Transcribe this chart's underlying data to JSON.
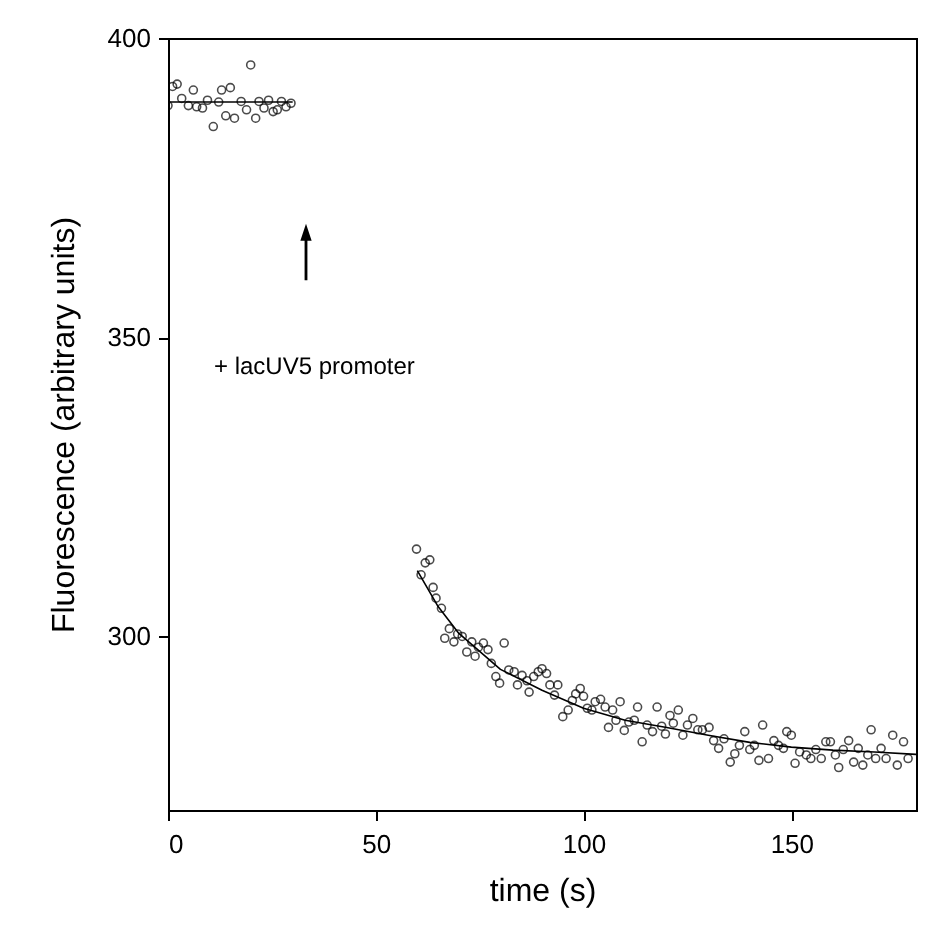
{
  "chart_data": {
    "type": "scatter",
    "xlabel": "time (s)",
    "ylabel": "Fluorescence (arbitrary units)",
    "xlim": [
      0,
      180
    ],
    "ylim": [
      271,
      400
    ],
    "xticks": [
      0,
      50,
      100,
      150
    ],
    "yticks": [
      300,
      350,
      400
    ],
    "grid": false,
    "annotations": [
      "+ lacUV5 promoter"
    ],
    "series": [
      {
        "marker": "circle",
        "color": "#000000",
        "x": [
          0,
          1.1,
          2.2,
          3.3,
          4.9,
          6.1,
          6.9,
          8.3,
          9.5,
          10.9,
          12.2,
          12.9,
          13.9,
          15,
          16,
          17.6,
          18.9,
          19.9,
          21.1,
          21.9,
          23.1,
          24.2,
          25.3,
          26.3,
          27.3,
          28.4,
          29.6,
          59.8,
          60.9,
          61.9,
          63,
          63.8,
          64.5,
          65.8,
          66.6,
          67.7,
          68.8,
          69.7,
          70.8,
          71.9,
          73.1,
          73.9,
          74.7,
          75.9,
          77,
          77.8,
          78.9,
          79.8,
          80.9,
          82,
          83.3,
          84.1,
          85.2,
          86.4,
          86.9,
          88,
          89.1,
          90,
          91.1,
          91.9,
          93,
          93.8,
          95,
          96.3,
          97.3,
          98.1,
          99.2,
          100,
          100.9,
          102,
          102.8,
          104.1,
          105.2,
          106,
          107,
          107.8,
          108.8,
          109.8,
          110.9,
          112.2,
          113,
          114.1,
          115.3,
          116.6,
          117.7,
          118.8,
          119.7,
          120.8,
          121.6,
          122.8,
          123.9,
          125,
          126.3,
          127.5,
          128.6,
          130.2,
          131.3,
          132.5,
          133.8,
          135.3,
          136.4,
          137.5,
          138.8,
          140,
          141.1,
          142.2,
          143.1,
          144.5,
          145.8,
          146.9,
          148.1,
          148.9,
          150,
          150.9,
          152,
          153.6,
          154.7,
          155.9,
          157.2,
          158.3,
          159.4,
          160.6,
          161.4,
          162.5,
          163.8,
          165,
          166.1,
          167.2,
          168.4,
          169.2,
          170.3,
          171.6,
          172.8,
          174.4,
          175.5,
          177,
          178.1
        ],
        "values": [
          388.7,
          391.9,
          392.3,
          389.9,
          388.7,
          391.3,
          388.5,
          388.3,
          389.6,
          385.2,
          389.3,
          391.3,
          387,
          391.7,
          386.6,
          389.4,
          388,
          395.5,
          386.6,
          389.4,
          388.3,
          389.6,
          387.7,
          388,
          389.4,
          388.5,
          389.1,
          314.6,
          310.3,
          312.3,
          312.8,
          308.2,
          306.4,
          304.7,
          299.7,
          301.3,
          299.1,
          300.4,
          300,
          297.4,
          299.1,
          296.7,
          298.2,
          298.9,
          297.8,
          295.5,
          293.3,
          292.2,
          298.9,
          294.4,
          294.1,
          291.9,
          293.5,
          292.6,
          290.7,
          293.3,
          294.1,
          294.6,
          293.8,
          291.9,
          290.2,
          291.9,
          286.6,
          287.7,
          289.3,
          290.4,
          291.3,
          290,
          288,
          287.7,
          289.1,
          289.5,
          288.2,
          284.8,
          287.7,
          286,
          289.1,
          284.3,
          285.7,
          286,
          288.2,
          282.4,
          285.2,
          284.1,
          288.2,
          285,
          283.7,
          286.8,
          285.5,
          287.7,
          283.5,
          285.2,
          286.3,
          284.4,
          284.4,
          284.8,
          282.6,
          281.3,
          282.9,
          279,
          280.4,
          281.8,
          284.1,
          281.1,
          281.8,
          279.3,
          285.2,
          279.6,
          282.6,
          281.8,
          281.3,
          284.1,
          283.5,
          278.8,
          280.7,
          280.2,
          279.6,
          281.1,
          279.6,
          282.4,
          282.4,
          280.2,
          278.1,
          281.1,
          282.6,
          279,
          281.3,
          278.5,
          280.2,
          284.4,
          279.6,
          281.3,
          279.6,
          283.5,
          278.5,
          282.4,
          279.6
        ]
      },
      {
        "type": "line",
        "marker": "none",
        "color": "#000000",
        "x": [
          0,
          30
        ],
        "values": [
          389.3,
          389.3
        ]
      },
      {
        "type": "line",
        "marker": "none",
        "color": "#000000",
        "x": [
          60,
          65,
          70,
          80,
          90,
          100,
          110,
          120,
          130,
          140,
          150,
          160,
          170,
          180
        ],
        "values": [
          311,
          305,
          300.5,
          294.5,
          291,
          288,
          286,
          284.8,
          283.5,
          282.3,
          281.5,
          281,
          280.7,
          280.3
        ]
      }
    ]
  }
}
